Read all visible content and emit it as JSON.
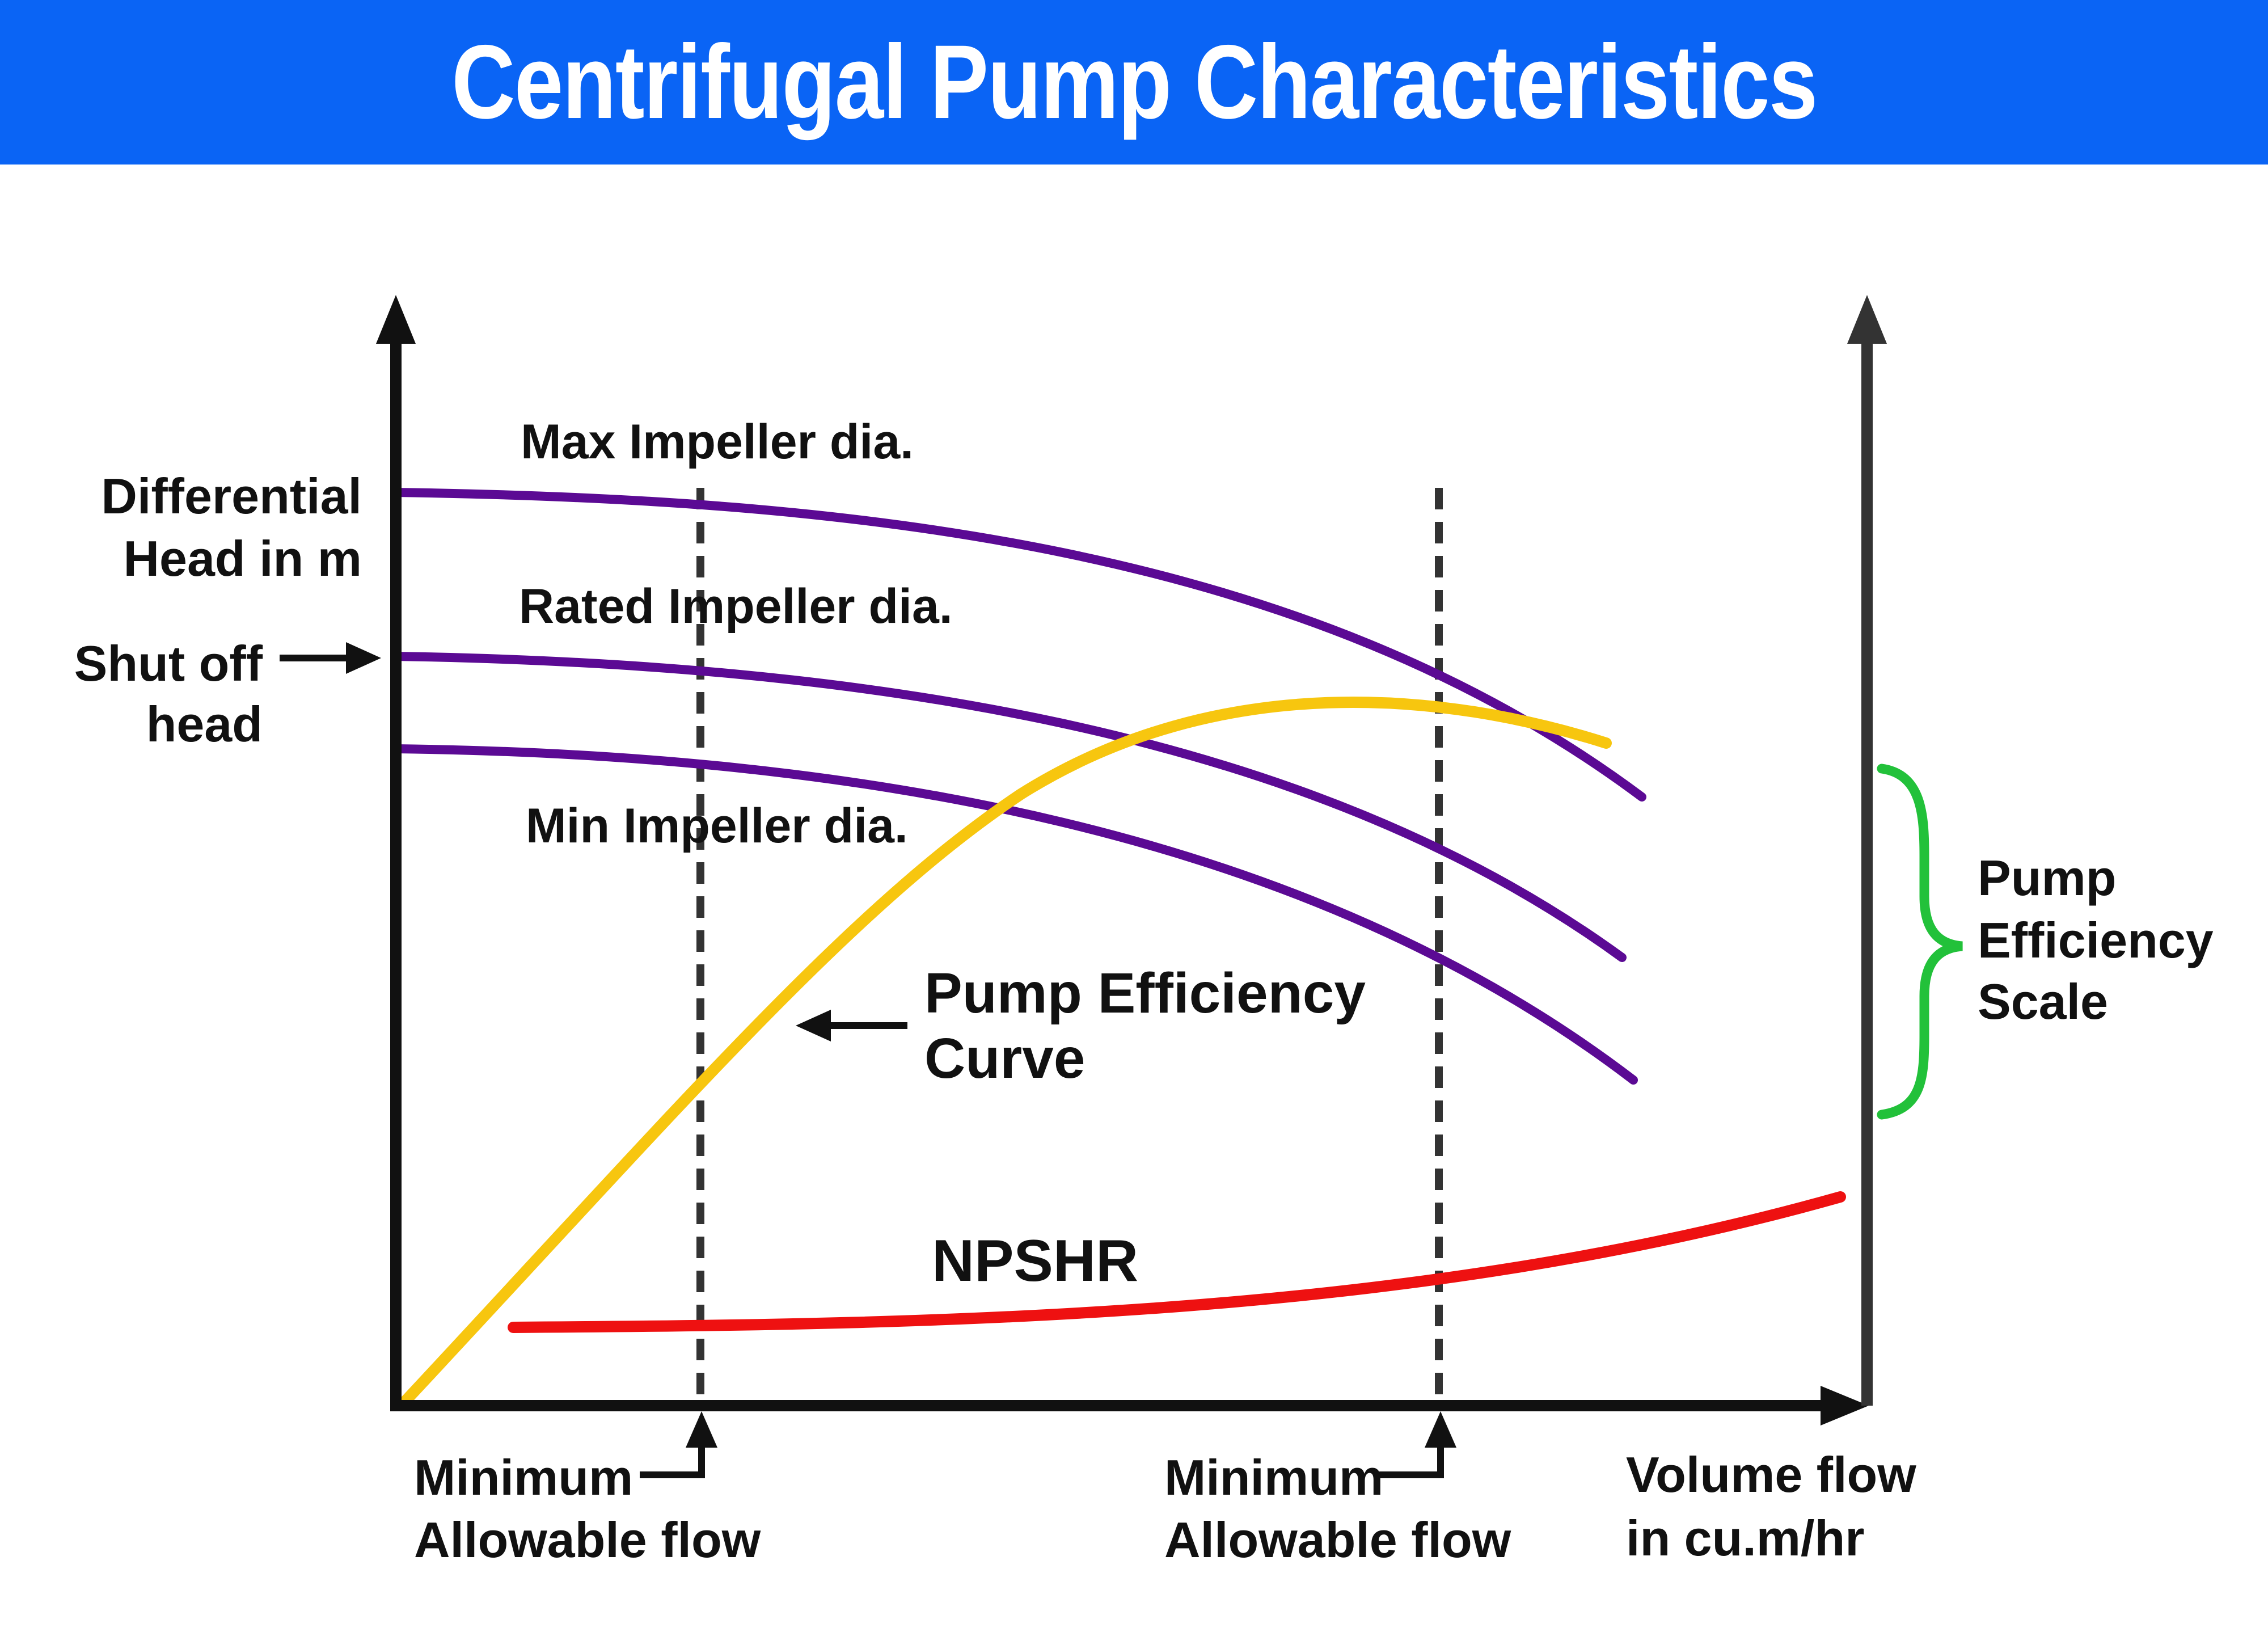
{
  "title": "Centrifugal Pump Characteristics",
  "labels": {
    "y_axis_line1": "Differential",
    "y_axis_line2": "Head in m",
    "shutoff_line1": "Shut off",
    "shutoff_line2": "head",
    "max_impeller": "Max Impeller dia.",
    "rated_impeller": "Rated Impeller dia.",
    "min_impeller": "Min Impeller dia.",
    "efficiency_curve_line1": "Pump Efficiency",
    "efficiency_curve_line2": "Curve",
    "npshr": "NPSHR",
    "efficiency_scale_line1": "Pump",
    "efficiency_scale_line2": "Efficiency",
    "efficiency_scale_line3": "Scale",
    "min_flow_left_line1": "Minimum",
    "min_flow_left_line2": "Allowable flow",
    "min_flow_right_line1": "Minimum",
    "min_flow_right_line2": "Allowable flow",
    "x_axis_line1": "Volume flow",
    "x_axis_line2": "in cu.m/hr"
  },
  "colors": {
    "banner": "#0a64f5",
    "head_curves": "#5b0a94",
    "efficiency_curve": "#f7c60f",
    "npshr_curve": "#ee1111",
    "efficiency_scale_brace": "#22c13a",
    "axes": "#111111",
    "right_axis": "#333333",
    "guide_lines": "#333333"
  },
  "icons": {
    "axis_arrows": "arrow-head-icon",
    "pointer_arrows": "arrow-right-icon",
    "brace": "curly-brace-icon"
  }
}
